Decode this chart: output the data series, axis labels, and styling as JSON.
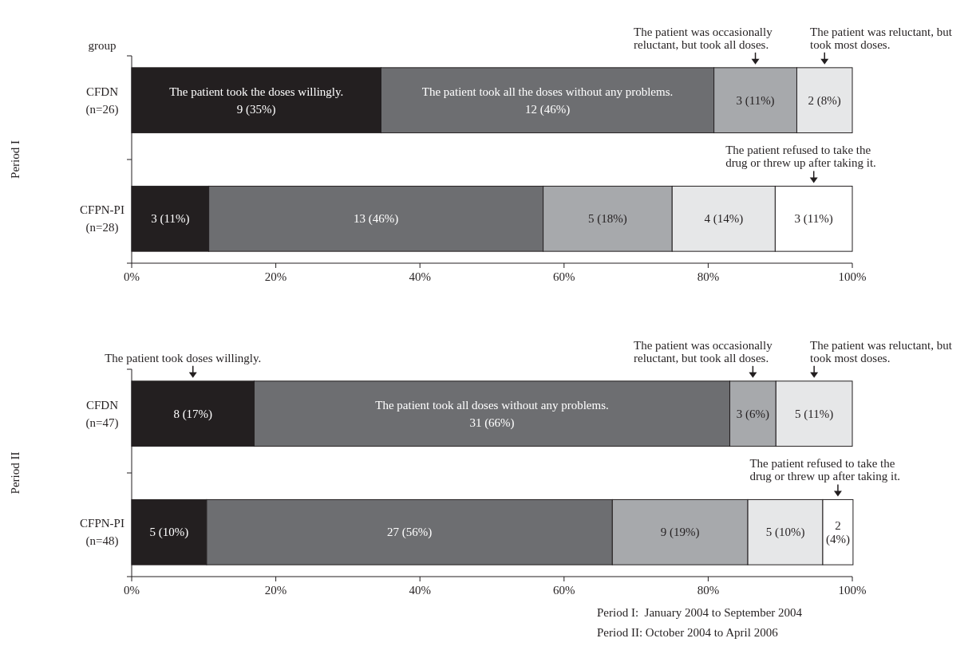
{
  "chart_data": [
    {
      "type": "bar",
      "orientation": "horizontal",
      "stacked": true,
      "ylabel": "Period I",
      "categories": [
        "CFDN (n=26)",
        "CFPN-PI (n=28)"
      ],
      "xlim": [
        0,
        100
      ],
      "xticks": [
        {
          "value": 0,
          "label": "0%"
        },
        {
          "value": 20,
          "label": "20%"
        },
        {
          "value": 40,
          "label": "40%"
        },
        {
          "value": 60,
          "label": "60%"
        },
        {
          "value": 80,
          "label": "80%"
        },
        {
          "value": 100,
          "label": "100%"
        }
      ],
      "annotations": [
        "group"
      ],
      "series": [
        {
          "name": "The patient took the doses willingly.",
          "color": "#231f20",
          "values": [
            34.6,
            10.7
          ],
          "value_labels": [
            "9 (35%)",
            "3 (11%)"
          ]
        },
        {
          "name": "The patient took all the doses without any problems.",
          "color": "#6d6e71",
          "values": [
            46.2,
            46.4
          ],
          "value_labels": [
            "12 (46%)",
            "13 (46%)"
          ]
        },
        {
          "name": "The patient was occasionally reluctant, but took all doses.",
          "color": "#a7a9ac",
          "values": [
            11.5,
            17.9
          ],
          "value_labels": [
            "3 (11%)",
            "5 (18%)"
          ]
        },
        {
          "name": "The patient was reluctant, but took most doses.",
          "color": "#e6e7e8",
          "values": [
            7.7,
            14.3
          ],
          "value_labels": [
            "2 (8%)",
            "4 (14%)"
          ]
        },
        {
          "name": "The patient refused to take the drug or threw up after taking it.",
          "color": "#ffffff",
          "values": [
            null,
            10.7
          ],
          "value_labels": [
            null,
            "3 (11%)"
          ]
        }
      ]
    },
    {
      "type": "bar",
      "orientation": "horizontal",
      "stacked": true,
      "ylabel": "Period II",
      "categories": [
        "CFDN (n=47)",
        "CFPN-PI (n=48)"
      ],
      "xlim": [
        0,
        100
      ],
      "xticks": [
        {
          "value": 0,
          "label": "0%"
        },
        {
          "value": 20,
          "label": "20%"
        },
        {
          "value": 40,
          "label": "40%"
        },
        {
          "value": 60,
          "label": "60%"
        },
        {
          "value": 80,
          "label": "80%"
        },
        {
          "value": 100,
          "label": "100%"
        }
      ],
      "annotations": [
        "Period I:  January 2004 to September 2004",
        "Period II: October 2004 to April 2006"
      ],
      "series": [
        {
          "name": "The patient took doses willingly.",
          "color": "#231f20",
          "values": [
            17.0,
            10.4
          ],
          "value_labels": [
            "8 (17%)",
            "5 (10%)"
          ]
        },
        {
          "name": "The patient took all doses without any problems.",
          "color": "#6d6e71",
          "values": [
            66.0,
            56.3
          ],
          "value_labels": [
            "31 (66%)",
            "27 (56%)"
          ]
        },
        {
          "name": "The patient was occasionally reluctant, but took all doses.",
          "color": "#a7a9ac",
          "values": [
            6.4,
            18.8
          ],
          "value_labels": [
            "3 (6%)",
            "9 (19%)"
          ]
        },
        {
          "name": "The patient was reluctant, but took most doses.",
          "color": "#e6e7e8",
          "values": [
            10.6,
            10.4
          ],
          "value_labels": [
            "5 (11%)",
            "5 (10%)"
          ]
        },
        {
          "name": "The patient refused to take the drug or threw up after taking it.",
          "color": "#ffffff",
          "values": [
            null,
            4.2
          ],
          "value_labels": [
            null,
            "2 (4%)"
          ]
        }
      ]
    }
  ]
}
